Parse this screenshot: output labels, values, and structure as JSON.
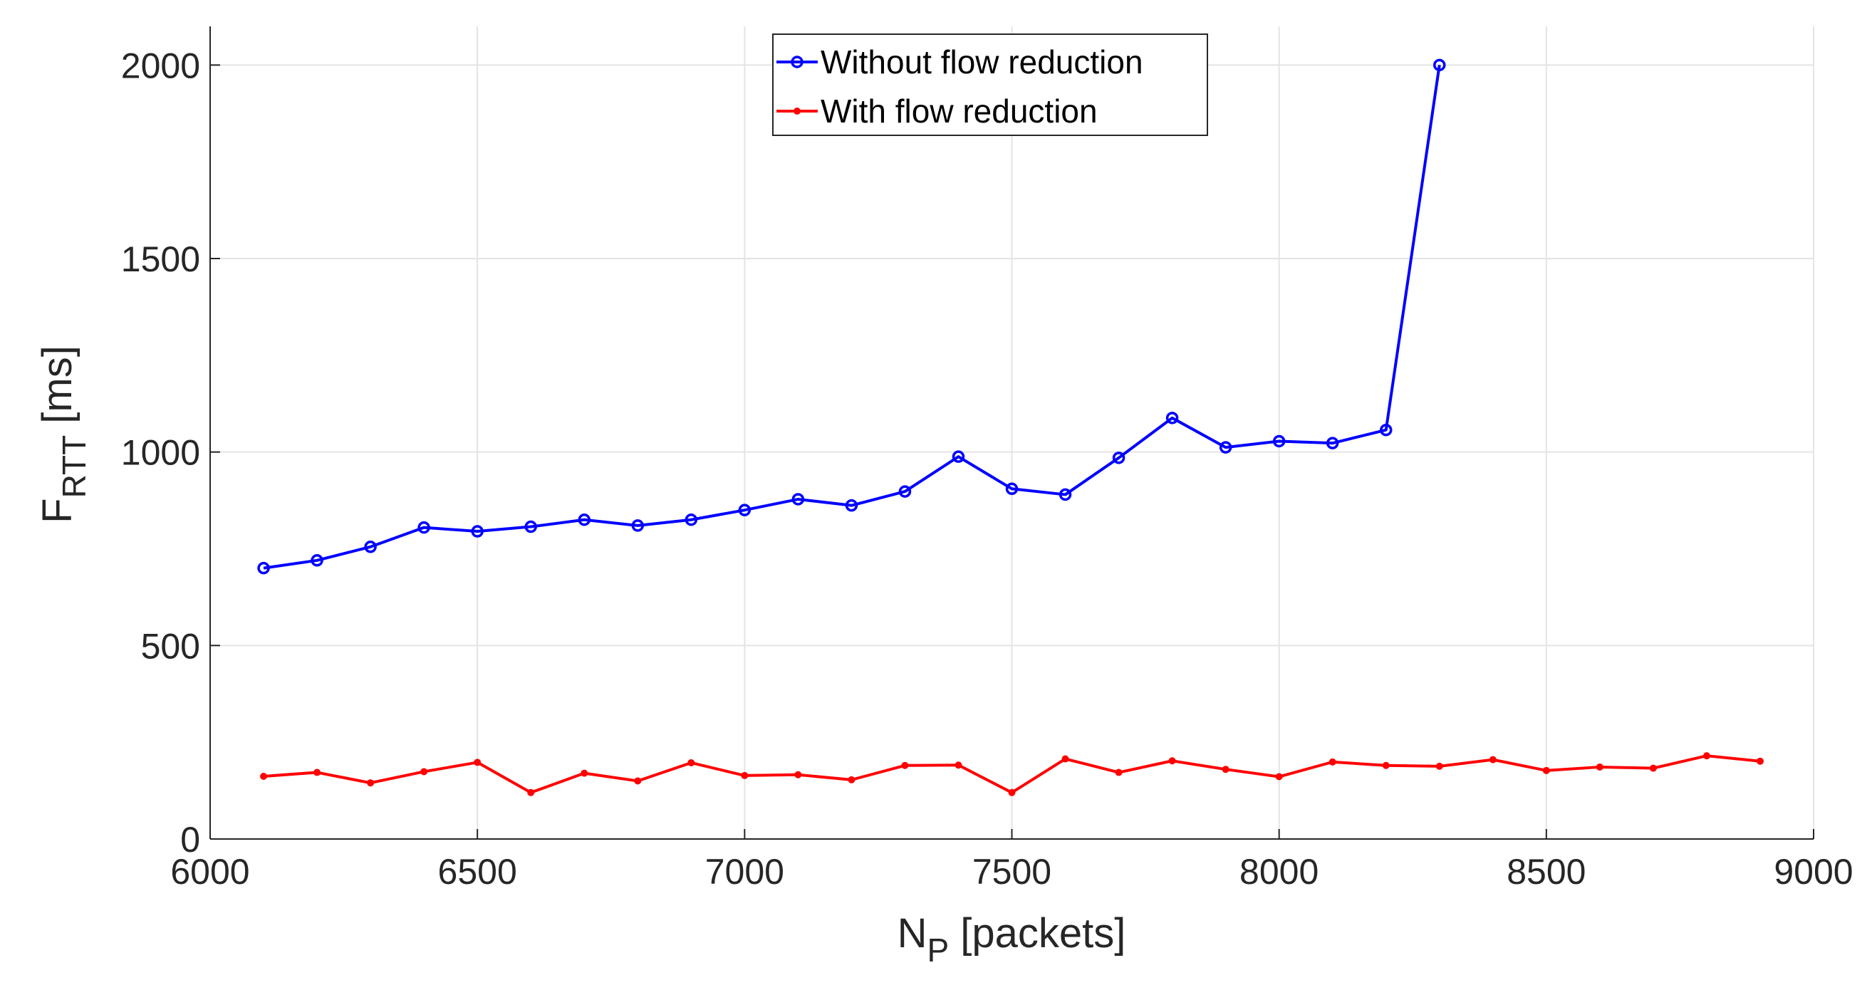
{
  "chart_data": {
    "type": "line",
    "title": "",
    "xlabel": {
      "main": "N",
      "sub": "P",
      "rest": " [packets]"
    },
    "ylabel": {
      "main": "F",
      "sub": "RTT",
      "rest": " [ms]"
    },
    "xlim": [
      6000,
      9000
    ],
    "ylim": [
      0,
      2100
    ],
    "xticks": [
      6000,
      6500,
      7000,
      7500,
      8000,
      8500,
      9000
    ],
    "yticks": [
      0,
      500,
      1000,
      1500,
      2000
    ],
    "xtick_labels": [
      "6000",
      "6500",
      "7000",
      "7500",
      "8000",
      "8500",
      "9000"
    ],
    "ytick_labels": [
      "0",
      "500",
      "1000",
      "1500",
      "2000"
    ],
    "grid": true,
    "legend_position": "top-center",
    "series": [
      {
        "name": "Without flow reduction",
        "color": "#0000ff",
        "marker": "circle",
        "x": [
          6100,
          6200,
          6300,
          6400,
          6500,
          6600,
          6700,
          6800,
          6900,
          7000,
          7100,
          7200,
          7300,
          7400,
          7500,
          7600,
          7700,
          7800,
          7900,
          8000,
          8100,
          8200,
          8300
        ],
        "y": [
          700,
          720,
          755,
          805,
          795,
          807,
          825,
          810,
          825,
          850,
          878,
          862,
          898,
          988,
          905,
          890,
          985,
          1088,
          1012,
          1028,
          1023,
          1057,
          2000
        ]
      },
      {
        "name": "With flow reduction",
        "color": "#ff0000",
        "marker": "dot",
        "x": [
          6100,
          6200,
          6300,
          6400,
          6500,
          6600,
          6700,
          6800,
          6900,
          7000,
          7100,
          7200,
          7300,
          7400,
          7500,
          7600,
          7700,
          7800,
          7900,
          8000,
          8100,
          8200,
          8300,
          8400,
          8500,
          8600,
          8700,
          8800,
          8900
        ],
        "y": [
          162,
          172,
          145,
          174,
          198,
          120,
          170,
          150,
          197,
          164,
          166,
          153,
          190,
          191,
          120,
          207,
          172,
          202,
          180,
          161,
          199,
          190,
          188,
          205,
          177,
          186,
          183,
          215,
          201
        ]
      }
    ]
  }
}
